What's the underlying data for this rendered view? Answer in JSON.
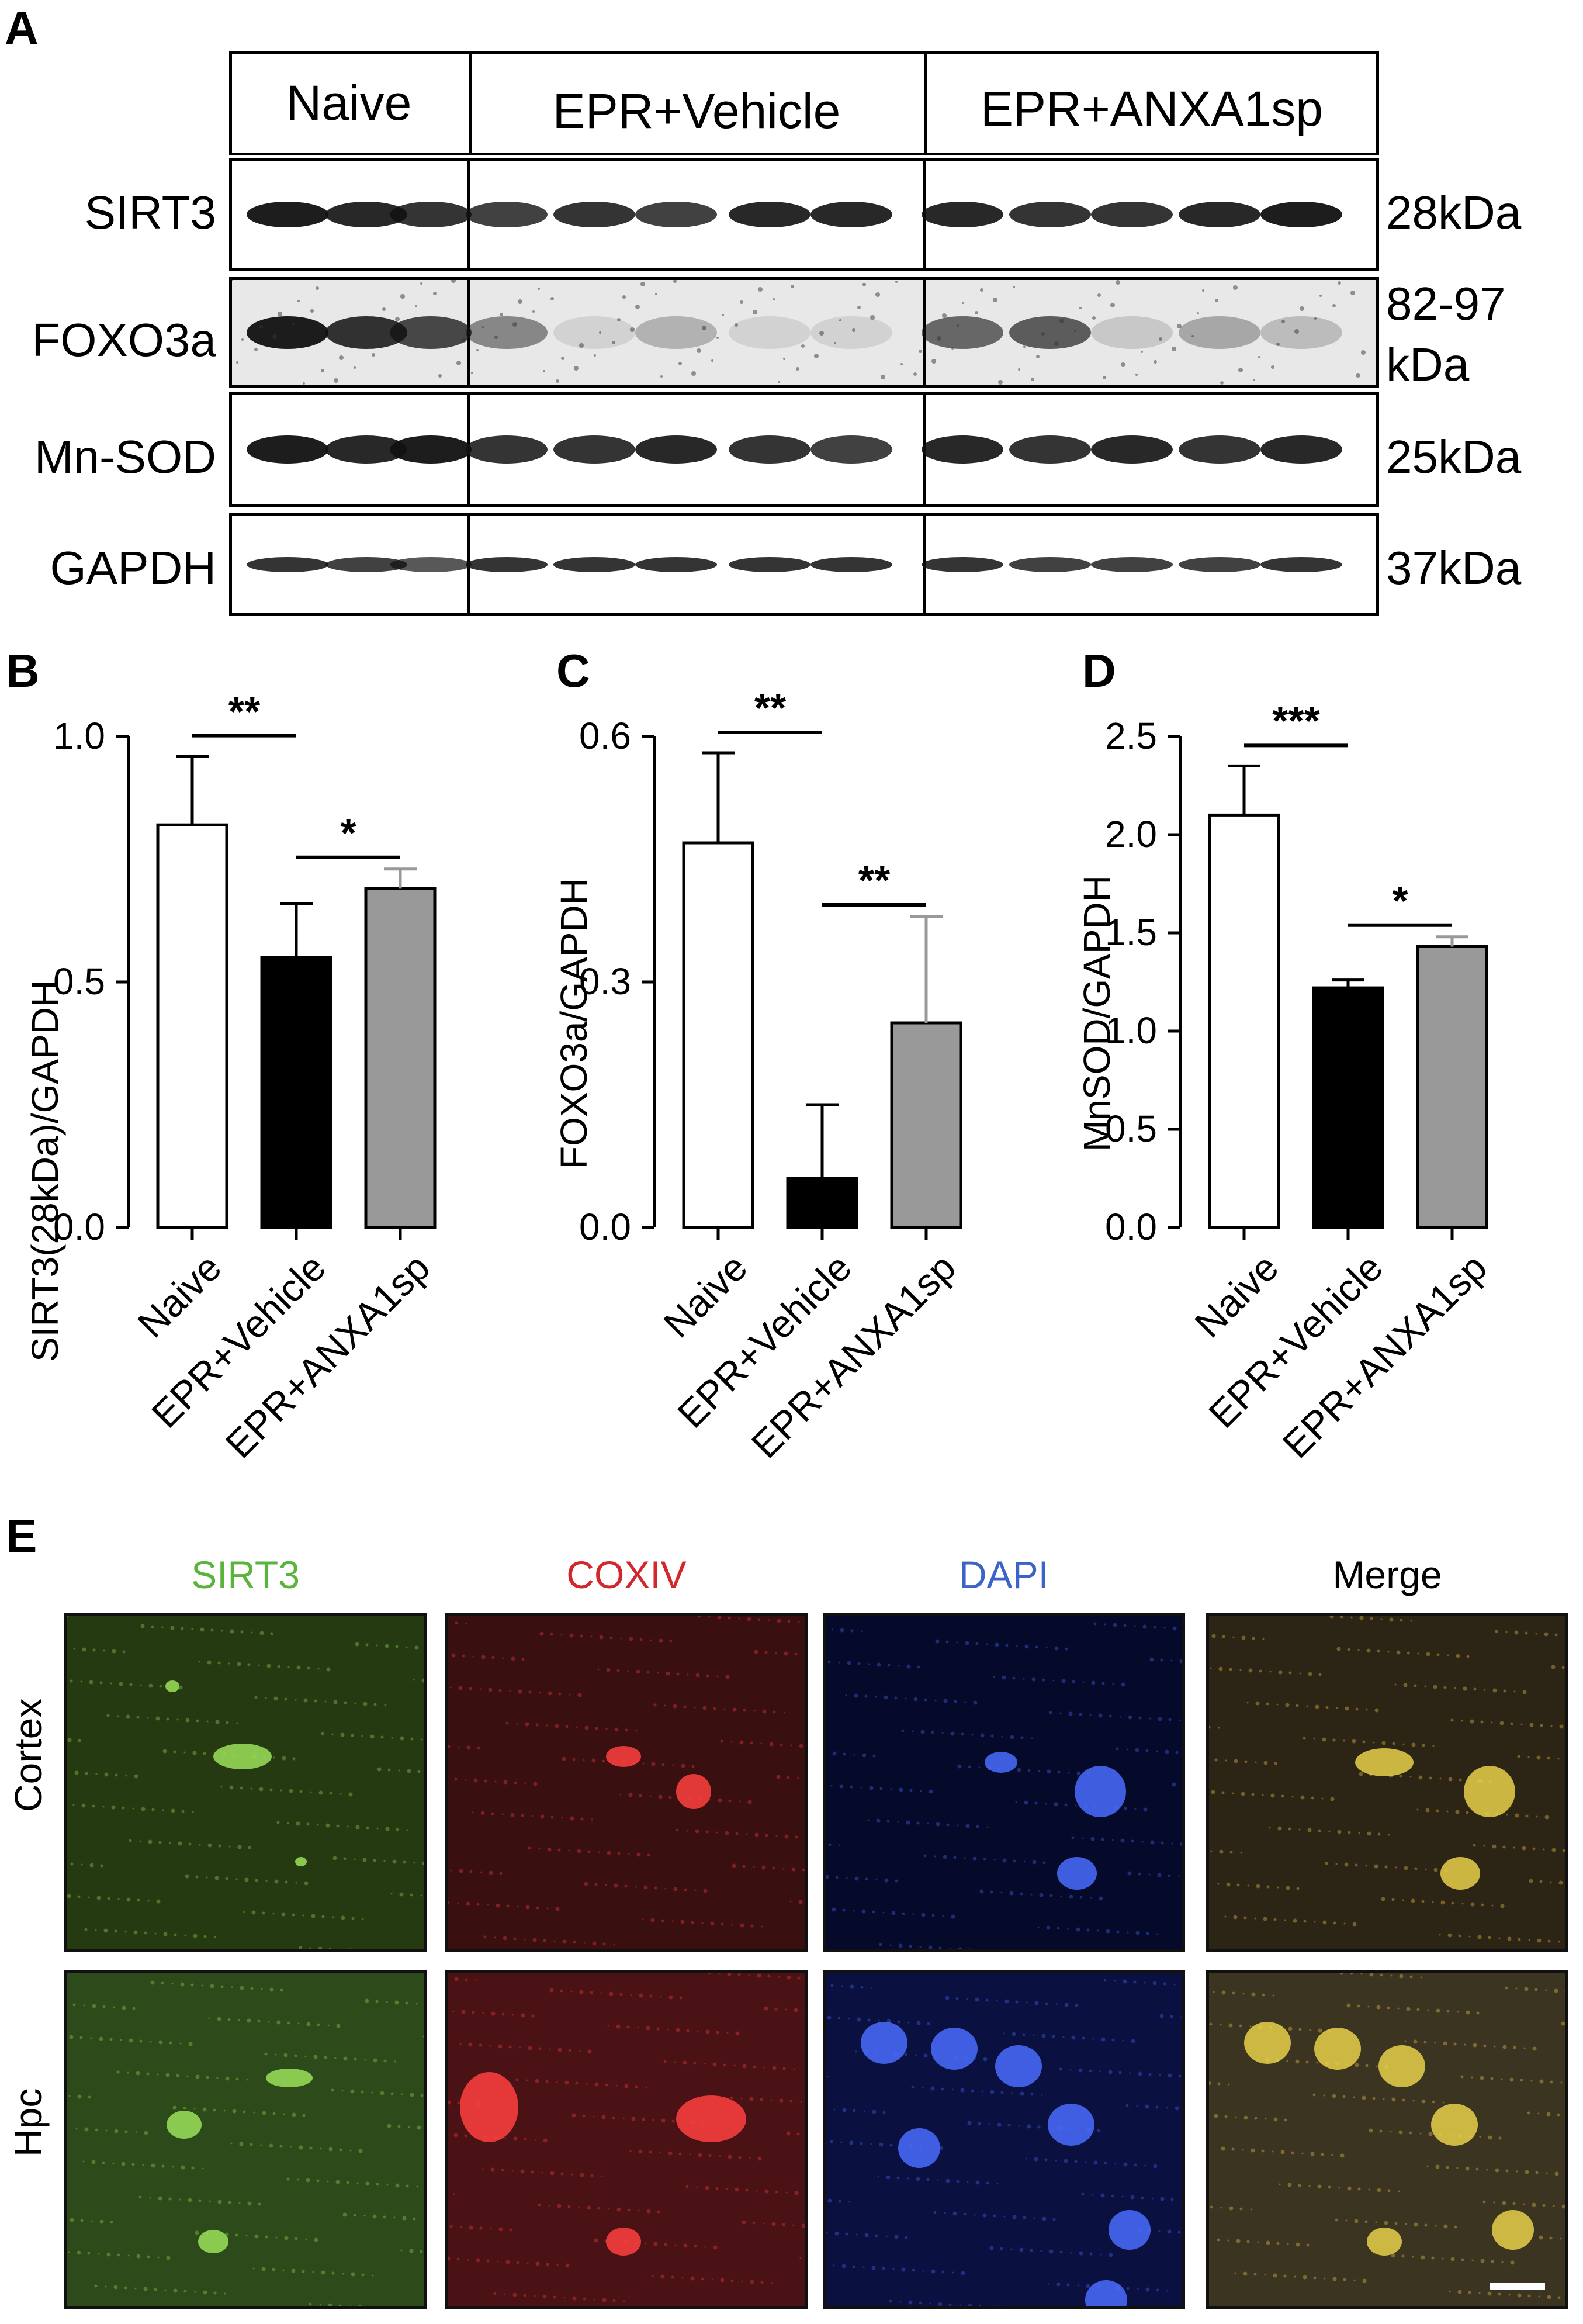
{
  "panels": {
    "a": "A",
    "b": "B",
    "c": "C",
    "d": "D",
    "e": "E"
  },
  "blot": {
    "groups": [
      "Naive",
      "EPR+Vehicle",
      "EPR+ANXA1sp"
    ],
    "rows": [
      {
        "label": "SIRT3",
        "kda": "28kDa",
        "kda2": ""
      },
      {
        "label": "FOXO3a",
        "kda": "82-97",
        "kda2": "kDa"
      },
      {
        "label": "Mn-SOD",
        "kda": "25kDa",
        "kda2": ""
      },
      {
        "label": "GAPDH",
        "kda": "37kDa",
        "kda2": ""
      }
    ]
  },
  "chart_data": [
    {
      "type": "bar",
      "panel": "B",
      "categories": [
        "Naive",
        "EPR+Vehicle",
        "EPR+ANXA1sp"
      ],
      "values": [
        0.82,
        0.55,
        0.69
      ],
      "errors": [
        0.14,
        0.11,
        0.04
      ],
      "bar_colors": [
        "#ffffff",
        "#000000",
        "#999999"
      ],
      "ylabel": "SIRT3(28kDa)/GAPDH",
      "ylim": [
        0,
        1.0
      ],
      "yticks": [
        "0.0",
        "0.5",
        "1.0"
      ],
      "yticks_values": [
        0,
        0.5,
        1.0
      ],
      "significance": [
        {
          "from": 0,
          "to": 1,
          "label": "**"
        },
        {
          "from": 1,
          "to": 2,
          "label": "*"
        }
      ]
    },
    {
      "type": "bar",
      "panel": "C",
      "categories": [
        "Naive",
        "EPR+Vehicle",
        "EPR+ANXA1sp"
      ],
      "values": [
        0.47,
        0.06,
        0.25
      ],
      "errors": [
        0.11,
        0.09,
        0.13
      ],
      "bar_colors": [
        "#ffffff",
        "#000000",
        "#999999"
      ],
      "ylabel": "FOXO3a/GAPDH",
      "ylim": [
        0,
        0.6
      ],
      "yticks": [
        "0.0",
        "0.3",
        "0.6"
      ],
      "yticks_values": [
        0,
        0.3,
        0.6
      ],
      "significance": [
        {
          "from": 0,
          "to": 1,
          "label": "**"
        },
        {
          "from": 1,
          "to": 2,
          "label": "**"
        }
      ]
    },
    {
      "type": "bar",
      "panel": "D",
      "categories": [
        "Naive",
        "EPR+Vehicle",
        "EPR+ANXA1sp"
      ],
      "values": [
        2.1,
        1.22,
        1.43
      ],
      "errors": [
        0.25,
        0.04,
        0.05
      ],
      "bar_colors": [
        "#ffffff",
        "#000000",
        "#999999"
      ],
      "ylabel": "MnSOD/GAPDH",
      "ylim": [
        0,
        2.5
      ],
      "yticks": [
        "0.0",
        "0.5",
        "1.0",
        "1.5",
        "2.0",
        "2.5"
      ],
      "yticks_values": [
        0,
        0.5,
        1.0,
        1.5,
        2.0,
        2.5
      ],
      "significance": [
        {
          "from": 0,
          "to": 1,
          "label": "***"
        },
        {
          "from": 1,
          "to": 2,
          "label": "*"
        }
      ]
    }
  ],
  "micrographs": {
    "channels": [
      {
        "label": "SIRT3",
        "color": "#5ab43c"
      },
      {
        "label": "COXIV",
        "color": "#d2282d"
      },
      {
        "label": "DAPI",
        "color": "#3c64c8"
      },
      {
        "label": "Merge",
        "color": "#000000"
      }
    ],
    "rows": [
      "Cortex",
      "Hpc"
    ]
  }
}
